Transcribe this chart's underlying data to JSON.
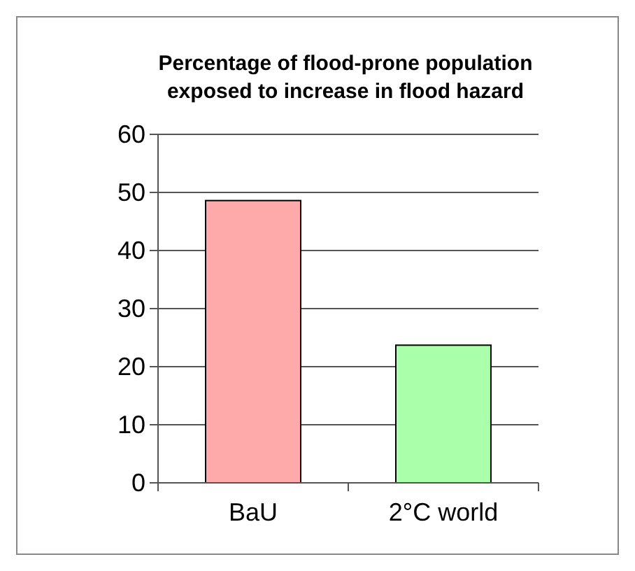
{
  "chart_data": {
    "type": "bar",
    "title": "Percentage of flood-prone population\nexposed to increase in flood hazard",
    "categories": [
      "BaU",
      "2°C world"
    ],
    "values": [
      48.6,
      23.7
    ],
    "colors": [
      "#ffaaaa",
      "#aaffaa"
    ],
    "ylim": [
      0,
      60
    ],
    "yticks": [
      0,
      10,
      20,
      30,
      40,
      50,
      60
    ],
    "grid": "y"
  }
}
